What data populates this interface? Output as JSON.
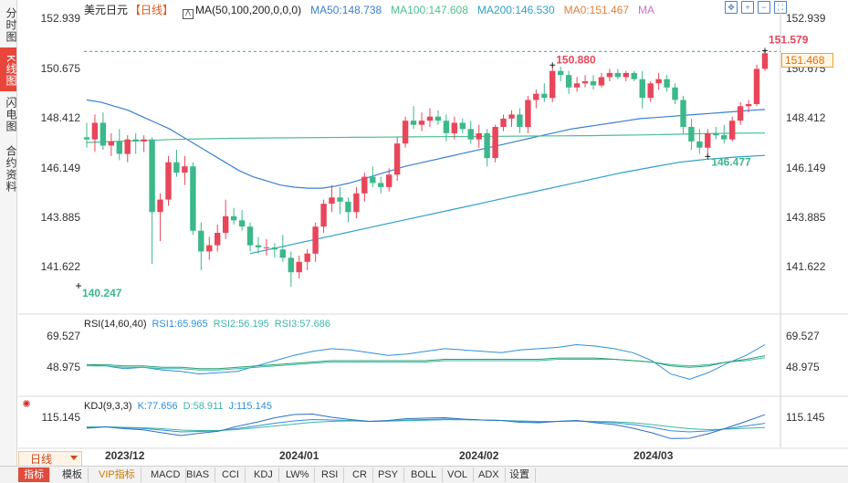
{
  "sidebar": {
    "tabs": [
      {
        "label": "分时图",
        "active": false
      },
      {
        "label": "K线图",
        "active": true
      },
      {
        "label": "闪电图",
        "active": false
      },
      {
        "label": "合约资料",
        "active": false
      }
    ]
  },
  "header": {
    "symbol": "美元日元",
    "period_tag": "【日线】",
    "ma_formula": "MA(50,100,200,0,0,0)",
    "ma50": "MA50:148.738",
    "ma100": "MA100:147.608",
    "ma200": "MA200:146.530",
    "ma0a": "MA0:151.467",
    "ma0b": "MA"
  },
  "toolbar": {
    "icons": [
      "move-arrows-icon",
      "zoom-in-icon",
      "zoom-out-icon",
      "fullscreen-icon"
    ]
  },
  "colors": {
    "up": "#e8465a",
    "down": "#3cb88a",
    "ma50": "#3a7fd0",
    "ma100": "#4cbf8f",
    "ma200": "#2f9fc8",
    "dash": "#3aa0c8"
  },
  "price_axis": {
    "ticks": [
      "152.939",
      "150.675",
      "148.412",
      "146.149",
      "143.885",
      "141.622"
    ],
    "current_price": "151.468"
  },
  "annotations": {
    "high_max": "151.579",
    "high_local": "150.880",
    "low_local": "146.477",
    "low_min": "140.247"
  },
  "rsi_panel": {
    "title": "RSI(14,60,40)",
    "rsi1": "RSI1:65.965",
    "rsi2": "RSI2:56.195",
    "rsi3": "RSI3:57.686",
    "ticks": [
      "69.527",
      "48.975"
    ]
  },
  "kdj_panel": {
    "title": "KDJ(9,3,3)",
    "k": "K:77.656",
    "d": "D:58.911",
    "j": "J:115.145",
    "tick": "115.145"
  },
  "time_axis": {
    "labels": [
      "2023/12",
      "2024/01",
      "2024/02",
      "2024/03"
    ]
  },
  "period_selector": "日线",
  "bottom_tabs": [
    "指标",
    "模板",
    "VIP指标",
    "MACD",
    "BIAS",
    "CCI",
    "KDJ",
    "LW%",
    "RSI",
    "CR",
    "PSY",
    "BOLL",
    "VOL",
    "ADX",
    "设置"
  ],
  "chart_data": {
    "type": "candlestick",
    "title": "美元日元【日线】",
    "ylim": [
      139.5,
      153.4
    ],
    "candles": [
      {
        "o": 147.4,
        "h": 148.1,
        "l": 146.9,
        "c": 147.3
      },
      {
        "o": 147.3,
        "h": 148.5,
        "l": 146.7,
        "c": 148.1
      },
      {
        "o": 148.1,
        "h": 148.6,
        "l": 146.8,
        "c": 147.0
      },
      {
        "o": 147.0,
        "h": 147.6,
        "l": 146.5,
        "c": 147.2
      },
      {
        "o": 147.2,
        "h": 147.8,
        "l": 146.3,
        "c": 146.6
      },
      {
        "o": 146.6,
        "h": 147.5,
        "l": 146.2,
        "c": 147.3
      },
      {
        "o": 147.3,
        "h": 147.6,
        "l": 146.6,
        "c": 147.2
      },
      {
        "o": 147.2,
        "h": 147.5,
        "l": 146.7,
        "c": 147.3
      },
      {
        "o": 147.3,
        "h": 147.4,
        "l": 141.3,
        "c": 143.8
      },
      {
        "o": 143.8,
        "h": 144.7,
        "l": 142.4,
        "c": 144.4
      },
      {
        "o": 144.4,
        "h": 146.5,
        "l": 144.1,
        "c": 146.2
      },
      {
        "o": 146.2,
        "h": 146.8,
        "l": 145.5,
        "c": 145.7
      },
      {
        "o": 145.7,
        "h": 146.5,
        "l": 145.1,
        "c": 146.0
      },
      {
        "o": 146.0,
        "h": 146.2,
        "l": 142.7,
        "c": 142.9
      },
      {
        "o": 142.9,
        "h": 143.3,
        "l": 141.0,
        "c": 141.9
      },
      {
        "o": 141.9,
        "h": 142.6,
        "l": 141.5,
        "c": 142.2
      },
      {
        "o": 142.2,
        "h": 143.2,
        "l": 141.9,
        "c": 142.8
      },
      {
        "o": 142.8,
        "h": 144.4,
        "l": 142.5,
        "c": 143.6
      },
      {
        "o": 143.6,
        "h": 144.0,
        "l": 143.2,
        "c": 143.4
      },
      {
        "o": 143.4,
        "h": 143.9,
        "l": 142.9,
        "c": 143.1
      },
      {
        "o": 143.1,
        "h": 143.3,
        "l": 141.9,
        "c": 142.2
      },
      {
        "o": 142.2,
        "h": 142.6,
        "l": 141.8,
        "c": 142.1
      },
      {
        "o": 142.1,
        "h": 142.5,
        "l": 141.7,
        "c": 142.1
      },
      {
        "o": 142.1,
        "h": 142.3,
        "l": 141.6,
        "c": 142.0
      },
      {
        "o": 142.0,
        "h": 142.7,
        "l": 141.4,
        "c": 141.6
      },
      {
        "o": 141.6,
        "h": 141.9,
        "l": 140.2,
        "c": 140.9
      },
      {
        "o": 140.9,
        "h": 141.7,
        "l": 140.6,
        "c": 141.4
      },
      {
        "o": 141.4,
        "h": 142.0,
        "l": 141.0,
        "c": 141.8
      },
      {
        "o": 141.8,
        "h": 143.3,
        "l": 141.4,
        "c": 143.1
      },
      {
        "o": 143.1,
        "h": 144.4,
        "l": 142.8,
        "c": 144.2
      },
      {
        "o": 144.2,
        "h": 145.1,
        "l": 143.8,
        "c": 144.5
      },
      {
        "o": 144.5,
        "h": 145.0,
        "l": 143.7,
        "c": 144.3
      },
      {
        "o": 144.3,
        "h": 144.5,
        "l": 143.3,
        "c": 143.8
      },
      {
        "o": 143.8,
        "h": 145.0,
        "l": 143.5,
        "c": 144.7
      },
      {
        "o": 144.7,
        "h": 145.7,
        "l": 144.3,
        "c": 145.5
      },
      {
        "o": 145.5,
        "h": 146.0,
        "l": 145.0,
        "c": 145.2
      },
      {
        "o": 145.2,
        "h": 145.5,
        "l": 144.7,
        "c": 145.0
      },
      {
        "o": 145.0,
        "h": 145.9,
        "l": 144.8,
        "c": 145.6
      },
      {
        "o": 145.6,
        "h": 147.4,
        "l": 145.3,
        "c": 147.1
      },
      {
        "o": 147.1,
        "h": 148.4,
        "l": 146.9,
        "c": 148.2
      },
      {
        "o": 148.2,
        "h": 148.9,
        "l": 147.8,
        "c": 148.0
      },
      {
        "o": 148.0,
        "h": 148.6,
        "l": 147.7,
        "c": 148.2
      },
      {
        "o": 148.2,
        "h": 148.8,
        "l": 147.9,
        "c": 148.4
      },
      {
        "o": 148.4,
        "h": 148.7,
        "l": 148.0,
        "c": 148.2
      },
      {
        "o": 148.2,
        "h": 148.5,
        "l": 147.2,
        "c": 147.6
      },
      {
        "o": 147.6,
        "h": 148.4,
        "l": 147.3,
        "c": 148.1
      },
      {
        "o": 148.1,
        "h": 148.3,
        "l": 147.6,
        "c": 147.8
      },
      {
        "o": 147.8,
        "h": 148.2,
        "l": 147.1,
        "c": 147.3
      },
      {
        "o": 147.3,
        "h": 148.0,
        "l": 146.9,
        "c": 147.6
      },
      {
        "o": 147.6,
        "h": 147.8,
        "l": 146.0,
        "c": 146.4
      },
      {
        "o": 146.4,
        "h": 148.0,
        "l": 146.2,
        "c": 147.9
      },
      {
        "o": 147.9,
        "h": 148.5,
        "l": 147.7,
        "c": 148.3
      },
      {
        "o": 148.3,
        "h": 148.7,
        "l": 147.9,
        "c": 148.5
      },
      {
        "o": 148.5,
        "h": 148.8,
        "l": 147.6,
        "c": 147.9
      },
      {
        "o": 147.9,
        "h": 149.4,
        "l": 147.6,
        "c": 149.2
      },
      {
        "o": 149.2,
        "h": 149.7,
        "l": 148.8,
        "c": 149.5
      },
      {
        "o": 149.5,
        "h": 150.0,
        "l": 149.1,
        "c": 149.3
      },
      {
        "o": 149.3,
        "h": 150.88,
        "l": 149.1,
        "c": 150.6
      },
      {
        "o": 150.6,
        "h": 150.8,
        "l": 150.1,
        "c": 150.4
      },
      {
        "o": 150.4,
        "h": 150.6,
        "l": 149.5,
        "c": 149.8
      },
      {
        "o": 149.8,
        "h": 150.3,
        "l": 149.6,
        "c": 150.0
      },
      {
        "o": 150.0,
        "h": 150.4,
        "l": 149.8,
        "c": 150.1
      },
      {
        "o": 150.1,
        "h": 150.4,
        "l": 149.7,
        "c": 149.9
      },
      {
        "o": 149.9,
        "h": 150.5,
        "l": 149.8,
        "c": 150.3
      },
      {
        "o": 150.3,
        "h": 150.7,
        "l": 150.1,
        "c": 150.5
      },
      {
        "o": 150.5,
        "h": 150.7,
        "l": 150.2,
        "c": 150.3
      },
      {
        "o": 150.3,
        "h": 150.6,
        "l": 150.1,
        "c": 150.5
      },
      {
        "o": 150.5,
        "h": 150.6,
        "l": 150.1,
        "c": 150.2
      },
      {
        "o": 150.2,
        "h": 150.6,
        "l": 148.8,
        "c": 149.3
      },
      {
        "o": 149.3,
        "h": 150.1,
        "l": 149.1,
        "c": 150.0
      },
      {
        "o": 150.0,
        "h": 150.5,
        "l": 149.7,
        "c": 150.2
      },
      {
        "o": 150.2,
        "h": 150.4,
        "l": 149.6,
        "c": 149.8
      },
      {
        "o": 149.8,
        "h": 150.0,
        "l": 149.0,
        "c": 149.2
      },
      {
        "o": 149.2,
        "h": 149.4,
        "l": 147.6,
        "c": 147.9
      },
      {
        "o": 147.9,
        "h": 148.3,
        "l": 146.8,
        "c": 147.2
      },
      {
        "o": 147.2,
        "h": 147.8,
        "l": 146.6,
        "c": 146.9
      },
      {
        "o": 146.9,
        "h": 147.8,
        "l": 146.477,
        "c": 147.6
      },
      {
        "o": 147.6,
        "h": 147.9,
        "l": 147.3,
        "c": 147.5
      },
      {
        "o": 147.5,
        "h": 148.0,
        "l": 147.1,
        "c": 147.3
      },
      {
        "o": 147.3,
        "h": 148.4,
        "l": 147.2,
        "c": 148.2
      },
      {
        "o": 148.2,
        "h": 149.1,
        "l": 148.0,
        "c": 148.9
      },
      {
        "o": 148.9,
        "h": 149.2,
        "l": 148.6,
        "c": 149.0
      },
      {
        "o": 149.0,
        "h": 150.9,
        "l": 148.9,
        "c": 150.7
      },
      {
        "o": 150.7,
        "h": 151.579,
        "l": 150.6,
        "c": 151.45
      }
    ],
    "ma50": [
      149.2,
      149.1,
      148.9,
      148.7,
      148.4,
      148.1,
      147.8,
      147.4,
      147.0,
      146.6,
      146.2,
      145.8,
      145.5,
      145.3,
      145.1,
      145.0,
      144.95,
      144.95,
      145.05,
      145.2,
      145.4,
      145.6,
      145.8,
      146.0,
      146.15,
      146.3,
      146.45,
      146.6,
      146.75,
      146.9,
      147.05,
      147.2,
      147.35,
      147.5,
      147.65,
      147.8,
      147.9,
      148.0,
      148.1,
      148.2,
      148.3,
      148.35,
      148.4,
      148.45,
      148.5,
      148.55,
      148.6,
      148.65,
      148.7,
      148.74
    ],
    "ma100": [
      147.15,
      147.2,
      147.25,
      147.3,
      147.33,
      147.35,
      147.37,
      147.38,
      147.39,
      147.4,
      147.41,
      147.42,
      147.43,
      147.44,
      147.45,
      147.46,
      147.47,
      147.48,
      147.5,
      147.52,
      147.55,
      147.58,
      147.6,
      147.608
    ],
    "ma200": [
      141.8,
      142.1,
      142.4,
      142.7,
      143.0,
      143.3,
      143.6,
      143.9,
      144.2,
      144.5,
      144.8,
      145.1,
      145.4,
      145.7,
      145.95,
      146.2,
      146.35,
      146.45,
      146.53
    ],
    "rsi_ylim": [
      30,
      78
    ],
    "rsi1": [
      51,
      50,
      48,
      49,
      47,
      46,
      44,
      45,
      46,
      50,
      54,
      58,
      61,
      63,
      62,
      60,
      58,
      59,
      61,
      63,
      62,
      61,
      60,
      62,
      63,
      64,
      66,
      65,
      63,
      60,
      54,
      44,
      40,
      45,
      52,
      58,
      66
    ],
    "rsi2": [
      50,
      50,
      49,
      49,
      48,
      48,
      47,
      47,
      48,
      49,
      50,
      51,
      52,
      53,
      53,
      53,
      53,
      53,
      53,
      54,
      54,
      54,
      54,
      54,
      54,
      55,
      55,
      55,
      55,
      54,
      53,
      51,
      50,
      51,
      53,
      54,
      56.2
    ],
    "rsi3": [
      51,
      51,
      50,
      50,
      49,
      49,
      48,
      48,
      49,
      50,
      51,
      52,
      53,
      54,
      54,
      54,
      54,
      54,
      54,
      55,
      55,
      55,
      55,
      55,
      55,
      56,
      56,
      56,
      55,
      54,
      53,
      50,
      49,
      50,
      53,
      55,
      57.7
    ],
    "kdj_ylim": [
      -20,
      140
    ],
    "k": [
      60,
      62,
      58,
      55,
      48,
      40,
      42,
      45,
      55,
      66,
      78,
      88,
      94,
      92,
      90,
      86,
      88,
      92,
      94,
      96,
      94,
      92,
      90,
      86,
      84,
      86,
      88,
      84,
      80,
      72,
      60,
      45,
      40,
      44,
      54,
      66,
      77.7
    ],
    "d": [
      62,
      62,
      60,
      58,
      54,
      48,
      46,
      46,
      50,
      58,
      66,
      74,
      82,
      86,
      88,
      86,
      87,
      89,
      91,
      93,
      93,
      92,
      90,
      88,
      86,
      86,
      87,
      86,
      84,
      80,
      72,
      62,
      54,
      50,
      52,
      56,
      58.9
    ],
    "j": [
      56,
      62,
      54,
      49,
      36,
      24,
      34,
      43,
      65,
      82,
      102,
      116,
      118,
      104,
      94,
      86,
      90,
      98,
      100,
      102,
      96,
      92,
      90,
      82,
      80,
      86,
      90,
      80,
      72,
      56,
      36,
      11,
      12,
      32,
      58,
      86,
      115.1
    ]
  }
}
